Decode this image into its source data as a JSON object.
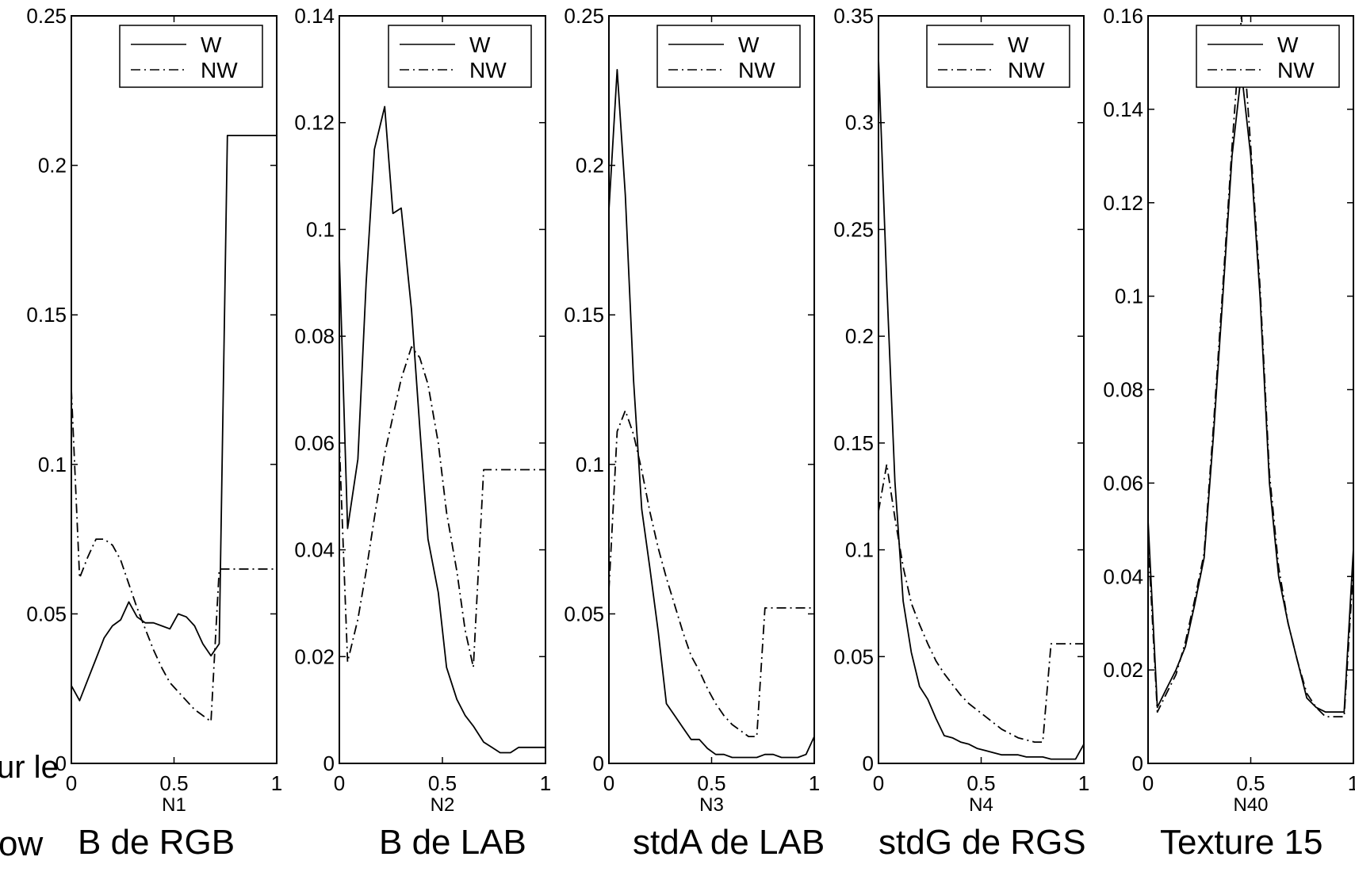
{
  "cut_text": {
    "left_fragment": "ur le",
    "bottom_fragment": "ow"
  },
  "captions": [
    "B de RGB",
    "B de LAB",
    "stdA de LAB",
    "stdG de RGS",
    "Texture 15"
  ],
  "colors": {
    "line": "#000000",
    "background": "#ffffff"
  },
  "chart_data": [
    {
      "type": "line",
      "xlabel": "N1",
      "xlim": [
        0,
        1
      ],
      "ylim": [
        0,
        0.25
      ],
      "xticks": [
        "0",
        "0.5",
        "1"
      ],
      "yticks": [
        "0",
        "0.05",
        "0.1",
        "0.15",
        "0.2",
        "0.25"
      ],
      "legend": {
        "position": "top-right",
        "entries": [
          "W",
          "NW"
        ]
      },
      "grid": false,
      "series": [
        {
          "name": "W",
          "style": "solid",
          "x": [
            0,
            0.04,
            0.08,
            0.12,
            0.16,
            0.2,
            0.24,
            0.28,
            0.32,
            0.36,
            0.4,
            0.44,
            0.48,
            0.52,
            0.56,
            0.6,
            0.64,
            0.68,
            0.72,
            0.76,
            0.8,
            0.84,
            0.88,
            0.92,
            0.96,
            1
          ],
          "y": [
            0.026,
            0.021,
            0.028,
            0.035,
            0.042,
            0.046,
            0.048,
            0.054,
            0.049,
            0.047,
            0.047,
            0.046,
            0.045,
            0.05,
            0.049,
            0.046,
            0.04,
            0.036,
            0.04,
            0.21,
            0.21,
            0.21,
            0.21,
            0.21,
            0.21,
            0.21
          ]
        },
        {
          "name": "NW",
          "style": "dashdot",
          "x": [
            0,
            0.04,
            0.08,
            0.12,
            0.16,
            0.2,
            0.24,
            0.28,
            0.32,
            0.36,
            0.4,
            0.44,
            0.48,
            0.52,
            0.56,
            0.6,
            0.64,
            0.68,
            0.72,
            0.76,
            0.8,
            0.84,
            0.88,
            0.92,
            0.96,
            1
          ],
          "y": [
            0.125,
            0.062,
            0.069,
            0.075,
            0.075,
            0.073,
            0.068,
            0.06,
            0.052,
            0.045,
            0.038,
            0.032,
            0.027,
            0.024,
            0.021,
            0.018,
            0.016,
            0.014,
            0.065,
            0.065,
            0.065,
            0.065,
            0.065,
            0.065,
            0.065,
            0.065
          ]
        }
      ]
    },
    {
      "type": "line",
      "xlabel": "N2",
      "xlim": [
        0,
        1
      ],
      "ylim": [
        0,
        0.14
      ],
      "xticks": [
        "0",
        "0.5",
        "1"
      ],
      "yticks": [
        "0",
        "0.02",
        "0.04",
        "0.06",
        "0.08",
        "0.1",
        "0.12",
        "0.14"
      ],
      "legend": {
        "position": "top-right",
        "entries": [
          "W",
          "NW"
        ]
      },
      "grid": false,
      "series": [
        {
          "name": "W",
          "style": "solid",
          "x": [
            0,
            0.04,
            0.09,
            0.13,
            0.17,
            0.22,
            0.26,
            0.3,
            0.35,
            0.39,
            0.43,
            0.48,
            0.52,
            0.57,
            0.61,
            0.65,
            0.7,
            0.74,
            0.78,
            0.83,
            0.87,
            0.91,
            0.96,
            1
          ],
          "y": [
            0.095,
            0.044,
            0.057,
            0.09,
            0.115,
            0.123,
            0.103,
            0.104,
            0.085,
            0.063,
            0.042,
            0.032,
            0.018,
            0.012,
            0.009,
            0.007,
            0.004,
            0.003,
            0.002,
            0.002,
            0.003,
            0.003,
            0.003,
            0.003
          ]
        },
        {
          "name": "NW",
          "style": "dashdot",
          "x": [
            0,
            0.04,
            0.09,
            0.13,
            0.17,
            0.22,
            0.26,
            0.3,
            0.35,
            0.39,
            0.43,
            0.48,
            0.52,
            0.57,
            0.61,
            0.65,
            0.7,
            0.74,
            0.78,
            0.83,
            0.87,
            0.91,
            0.96,
            1
          ],
          "y": [
            0.06,
            0.019,
            0.027,
            0.036,
            0.046,
            0.058,
            0.065,
            0.072,
            0.078,
            0.076,
            0.071,
            0.06,
            0.047,
            0.036,
            0.025,
            0.018,
            0.055,
            0.055,
            0.055,
            0.055,
            0.055,
            0.055,
            0.055,
            0.055
          ]
        }
      ]
    },
    {
      "type": "line",
      "xlabel": "N3",
      "xlim": [
        0,
        1
      ],
      "ylim": [
        0,
        0.25
      ],
      "xticks": [
        "0",
        "0.5",
        "1"
      ],
      "yticks": [
        "0",
        "0.05",
        "0.1",
        "0.15",
        "0.2",
        "0.25"
      ],
      "legend": {
        "position": "top-right",
        "entries": [
          "W",
          "NW"
        ]
      },
      "grid": false,
      "series": [
        {
          "name": "W",
          "style": "solid",
          "x": [
            0,
            0.04,
            0.08,
            0.12,
            0.16,
            0.2,
            0.24,
            0.28,
            0.32,
            0.36,
            0.4,
            0.44,
            0.48,
            0.52,
            0.56,
            0.6,
            0.64,
            0.68,
            0.72,
            0.76,
            0.8,
            0.84,
            0.88,
            0.92,
            0.96,
            1
          ],
          "y": [
            0.185,
            0.232,
            0.19,
            0.128,
            0.085,
            0.065,
            0.044,
            0.02,
            0.016,
            0.012,
            0.008,
            0.008,
            0.005,
            0.003,
            0.003,
            0.002,
            0.002,
            0.002,
            0.002,
            0.003,
            0.003,
            0.002,
            0.002,
            0.002,
            0.003,
            0.009
          ]
        },
        {
          "name": "NW",
          "style": "dashdot",
          "x": [
            0,
            0.04,
            0.08,
            0.12,
            0.16,
            0.2,
            0.24,
            0.28,
            0.32,
            0.36,
            0.4,
            0.44,
            0.48,
            0.52,
            0.56,
            0.6,
            0.64,
            0.68,
            0.72,
            0.76,
            0.8,
            0.84,
            0.88,
            0.92,
            0.96,
            1
          ],
          "y": [
            0.058,
            0.111,
            0.118,
            0.11,
            0.098,
            0.084,
            0.072,
            0.062,
            0.053,
            0.044,
            0.036,
            0.031,
            0.025,
            0.02,
            0.016,
            0.013,
            0.011,
            0.009,
            0.009,
            0.052,
            0.052,
            0.052,
            0.052,
            0.052,
            0.052,
            0.052
          ]
        }
      ]
    },
    {
      "type": "line",
      "xlabel": "N4",
      "xlim": [
        0,
        1
      ],
      "ylim": [
        0,
        0.35
      ],
      "xticks": [
        "0",
        "0.5",
        "1"
      ],
      "yticks": [
        "0",
        "0.05",
        "0.1",
        "0.15",
        "0.2",
        "0.25",
        "0.3",
        "0.35"
      ],
      "legend": {
        "position": "top-right",
        "entries": [
          "W",
          "NW"
        ]
      },
      "grid": false,
      "series": [
        {
          "name": "W",
          "style": "solid",
          "x": [
            0,
            0.04,
            0.08,
            0.12,
            0.16,
            0.2,
            0.24,
            0.28,
            0.32,
            0.36,
            0.4,
            0.44,
            0.48,
            0.52,
            0.56,
            0.6,
            0.64,
            0.68,
            0.72,
            0.76,
            0.8,
            0.84,
            0.88,
            0.92,
            0.96,
            1
          ],
          "y": [
            0.33,
            0.225,
            0.132,
            0.076,
            0.052,
            0.036,
            0.03,
            0.021,
            0.013,
            0.012,
            0.01,
            0.009,
            0.007,
            0.006,
            0.005,
            0.004,
            0.004,
            0.004,
            0.003,
            0.003,
            0.003,
            0.002,
            0.002,
            0.002,
            0.002,
            0.009
          ]
        },
        {
          "name": "NW",
          "style": "dashdot",
          "x": [
            0,
            0.04,
            0.08,
            0.12,
            0.16,
            0.2,
            0.24,
            0.28,
            0.32,
            0.36,
            0.4,
            0.44,
            0.48,
            0.52,
            0.56,
            0.6,
            0.64,
            0.68,
            0.72,
            0.76,
            0.8,
            0.84,
            0.88,
            0.92,
            0.96,
            1
          ],
          "y": [
            0.118,
            0.14,
            0.115,
            0.092,
            0.075,
            0.065,
            0.056,
            0.048,
            0.042,
            0.037,
            0.032,
            0.028,
            0.025,
            0.022,
            0.019,
            0.016,
            0.014,
            0.012,
            0.011,
            0.01,
            0.01,
            0.056,
            0.056,
            0.056,
            0.056,
            0.056
          ]
        }
      ]
    },
    {
      "type": "line",
      "xlabel": "N40",
      "xlim": [
        0,
        1
      ],
      "ylim": [
        0,
        0.16
      ],
      "xticks": [
        "0",
        "0.5",
        "1"
      ],
      "yticks": [
        "0",
        "0.02",
        "0.04",
        "0.06",
        "0.08",
        "0.1",
        "0.12",
        "0.14",
        "0.16"
      ],
      "legend": {
        "position": "top-right",
        "entries": [
          "W",
          "NW"
        ]
      },
      "grid": false,
      "series": [
        {
          "name": "W",
          "style": "solid",
          "x": [
            0,
            0.045,
            0.09,
            0.136,
            0.182,
            0.227,
            0.273,
            0.318,
            0.364,
            0.409,
            0.455,
            0.5,
            0.545,
            0.591,
            0.636,
            0.682,
            0.727,
            0.773,
            0.818,
            0.864,
            0.909,
            0.955,
            1
          ],
          "y": [
            0.052,
            0.012,
            0.016,
            0.02,
            0.025,
            0.034,
            0.044,
            0.07,
            0.1,
            0.13,
            0.148,
            0.13,
            0.1,
            0.06,
            0.04,
            0.03,
            0.022,
            0.014,
            0.012,
            0.011,
            0.011,
            0.011,
            0.046
          ]
        },
        {
          "name": "NW",
          "style": "dashdot",
          "x": [
            0,
            0.045,
            0.09,
            0.136,
            0.182,
            0.227,
            0.273,
            0.318,
            0.364,
            0.409,
            0.455,
            0.5,
            0.545,
            0.591,
            0.636,
            0.682,
            0.727,
            0.773,
            0.818,
            0.864,
            0.909,
            0.955,
            1
          ],
          "y": [
            0.048,
            0.011,
            0.015,
            0.019,
            0.026,
            0.035,
            0.045,
            0.072,
            0.102,
            0.132,
            0.16,
            0.132,
            0.102,
            0.062,
            0.042,
            0.03,
            0.022,
            0.015,
            0.012,
            0.01,
            0.01,
            0.01,
            0.042
          ]
        }
      ]
    }
  ]
}
